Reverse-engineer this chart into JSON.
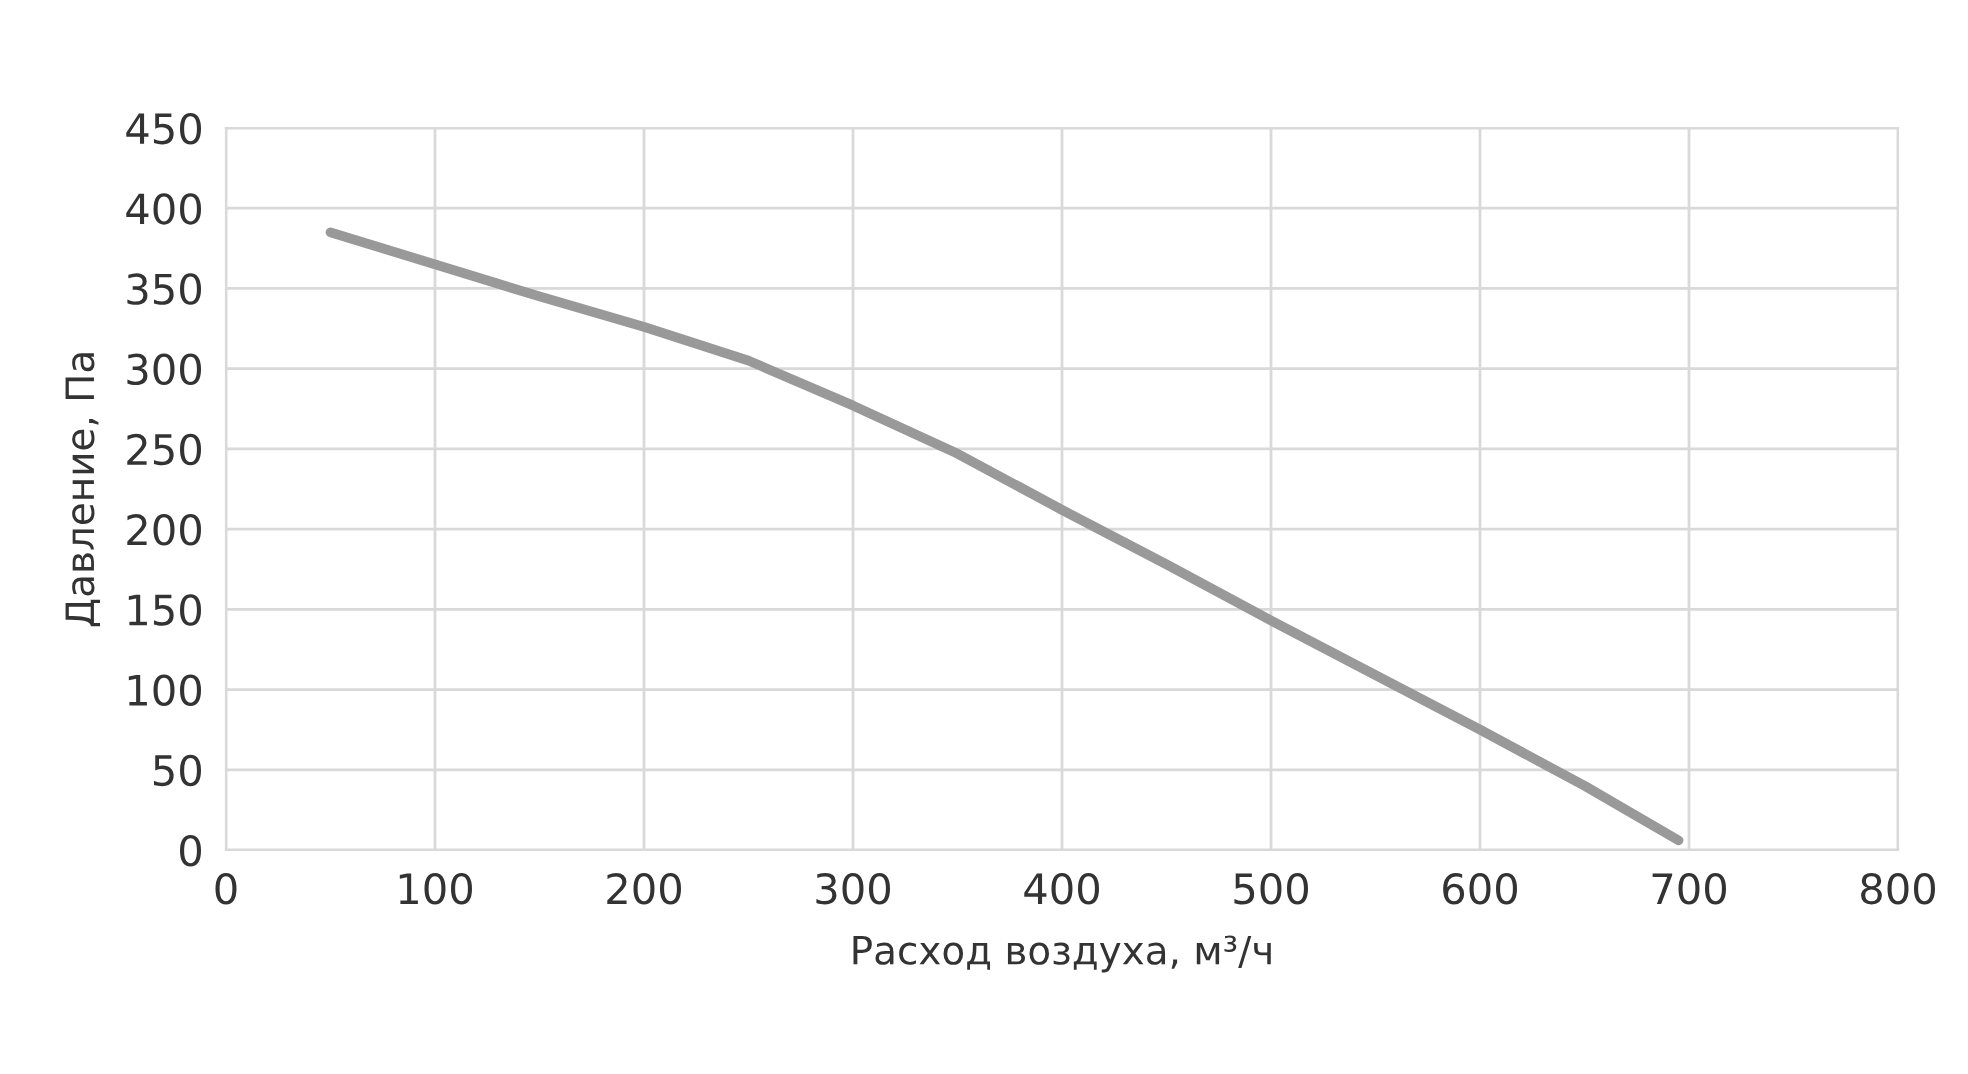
{
  "chart_data": {
    "type": "line",
    "xlabel": "Расход воздуха, м³/ч",
    "ylabel": "Давление, Па",
    "x": [
      50,
      100,
      150,
      200,
      250,
      300,
      350,
      400,
      450,
      500,
      550,
      600,
      650,
      695
    ],
    "series": [
      {
        "color": "#999999",
        "values": [
          385,
          365,
          345,
          326,
          305,
          277,
          247,
          212,
          178,
          143,
          109,
          75,
          40,
          6
        ]
      }
    ],
    "xlim": [
      0,
      800
    ],
    "xticks": [
      0,
      100,
      200,
      300,
      400,
      500,
      600,
      700,
      800
    ],
    "ylim": [
      0,
      450
    ],
    "yticks": [
      0,
      50,
      100,
      150,
      200,
      250,
      300,
      350,
      400,
      450
    ],
    "grid": true,
    "line_style": "solid"
  }
}
